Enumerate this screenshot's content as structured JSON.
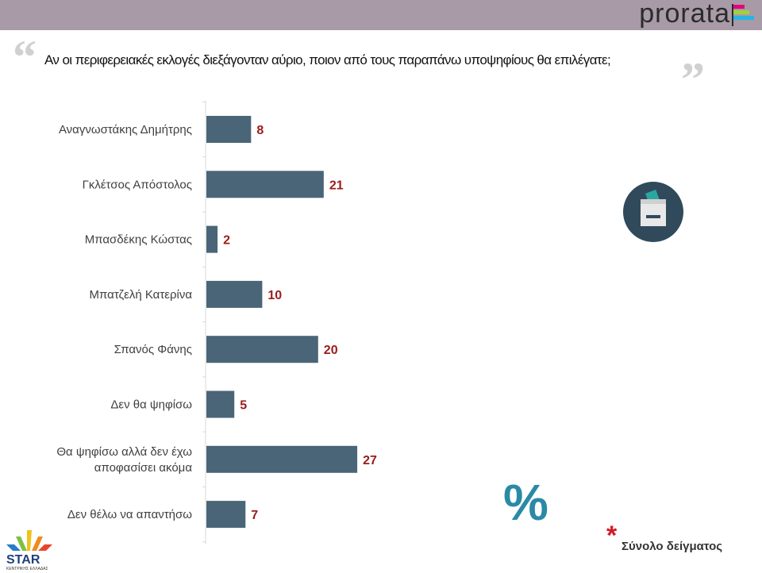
{
  "header": {
    "brand": "prorata",
    "brand_colors": [
      "#e6007e",
      "#9fd33a",
      "#27b5e6"
    ]
  },
  "question": "Αν οι περιφερειακές εκλογές διεξάγονταν αύριο, ποιον από τους παραπάνω υποψηφίους θα επιλέγατε;",
  "chart_data": {
    "type": "bar",
    "orientation": "horizontal",
    "categories": [
      "Αναγνωστάκης Δημήτρης",
      "Γκλέτσος Απόστολος",
      "Μπασδέκης Κώστας",
      "Μπατζελή Κατερίνα",
      "Σπανός Φάνης",
      "Δεν θα ψηφίσω",
      "Θα ψηφίσω αλλά δεν έχω αποφασίσει ακόμα",
      "Δεν θέλω να απαντήσω"
    ],
    "values": [
      8,
      21,
      2,
      10,
      20,
      5,
      27,
      7
    ],
    "unit": "%",
    "bar_color": "#4a6577",
    "label_color": "#9b1b1b",
    "grid": false
  },
  "footer": {
    "percent_symbol": "%",
    "sample_note": "Σύνολο δείγματος",
    "asterisk": "*",
    "logo_text": "STAR",
    "logo_subtext": "ΚΕΝΤΡΙΚΗΣ ΕΛΛΑΔΑΣ"
  }
}
